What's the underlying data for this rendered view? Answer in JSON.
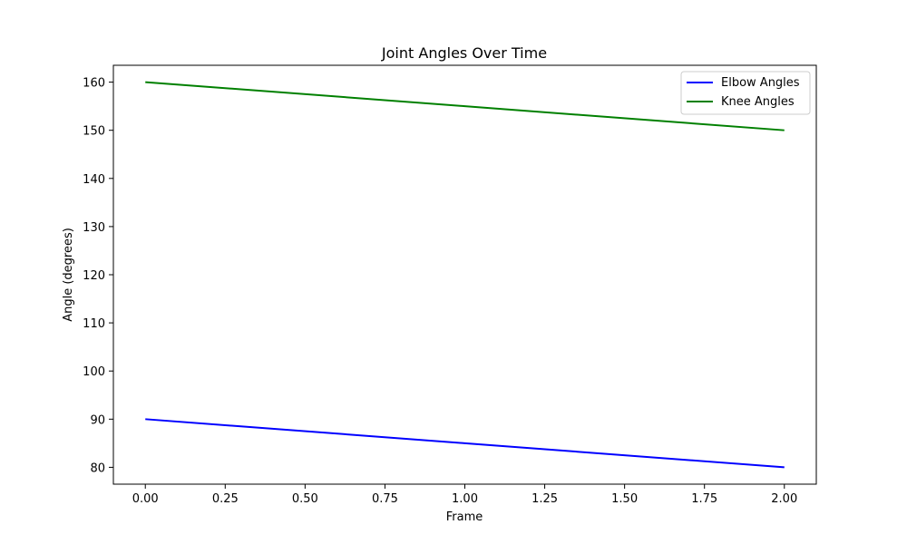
{
  "chart_data": {
    "type": "line",
    "title": "Joint Angles Over Time",
    "xlabel": "Frame",
    "ylabel": "Angle (degrees)",
    "xlim": [
      -0.1,
      2.1
    ],
    "ylim": [
      76.5,
      163.5
    ],
    "x_ticks": [
      0.0,
      0.25,
      0.5,
      0.75,
      1.0,
      1.25,
      1.5,
      1.75,
      2.0
    ],
    "x_tick_labels": [
      "0.00",
      "0.25",
      "0.50",
      "0.75",
      "1.00",
      "1.25",
      "1.50",
      "1.75",
      "2.00"
    ],
    "y_ticks": [
      80,
      90,
      100,
      110,
      120,
      130,
      140,
      150,
      160
    ],
    "y_tick_labels": [
      "80",
      "90",
      "100",
      "110",
      "120",
      "130",
      "140",
      "150",
      "160"
    ],
    "grid": false,
    "legend_position": "top-right",
    "series": [
      {
        "name": "Elbow Angles",
        "color": "#0000ff",
        "x": [
          0,
          1,
          2
        ],
        "values": [
          90,
          85,
          80
        ]
      },
      {
        "name": "Knee Angles",
        "color": "#008000",
        "x": [
          0,
          1,
          2
        ],
        "values": [
          160,
          155,
          150
        ]
      }
    ]
  }
}
